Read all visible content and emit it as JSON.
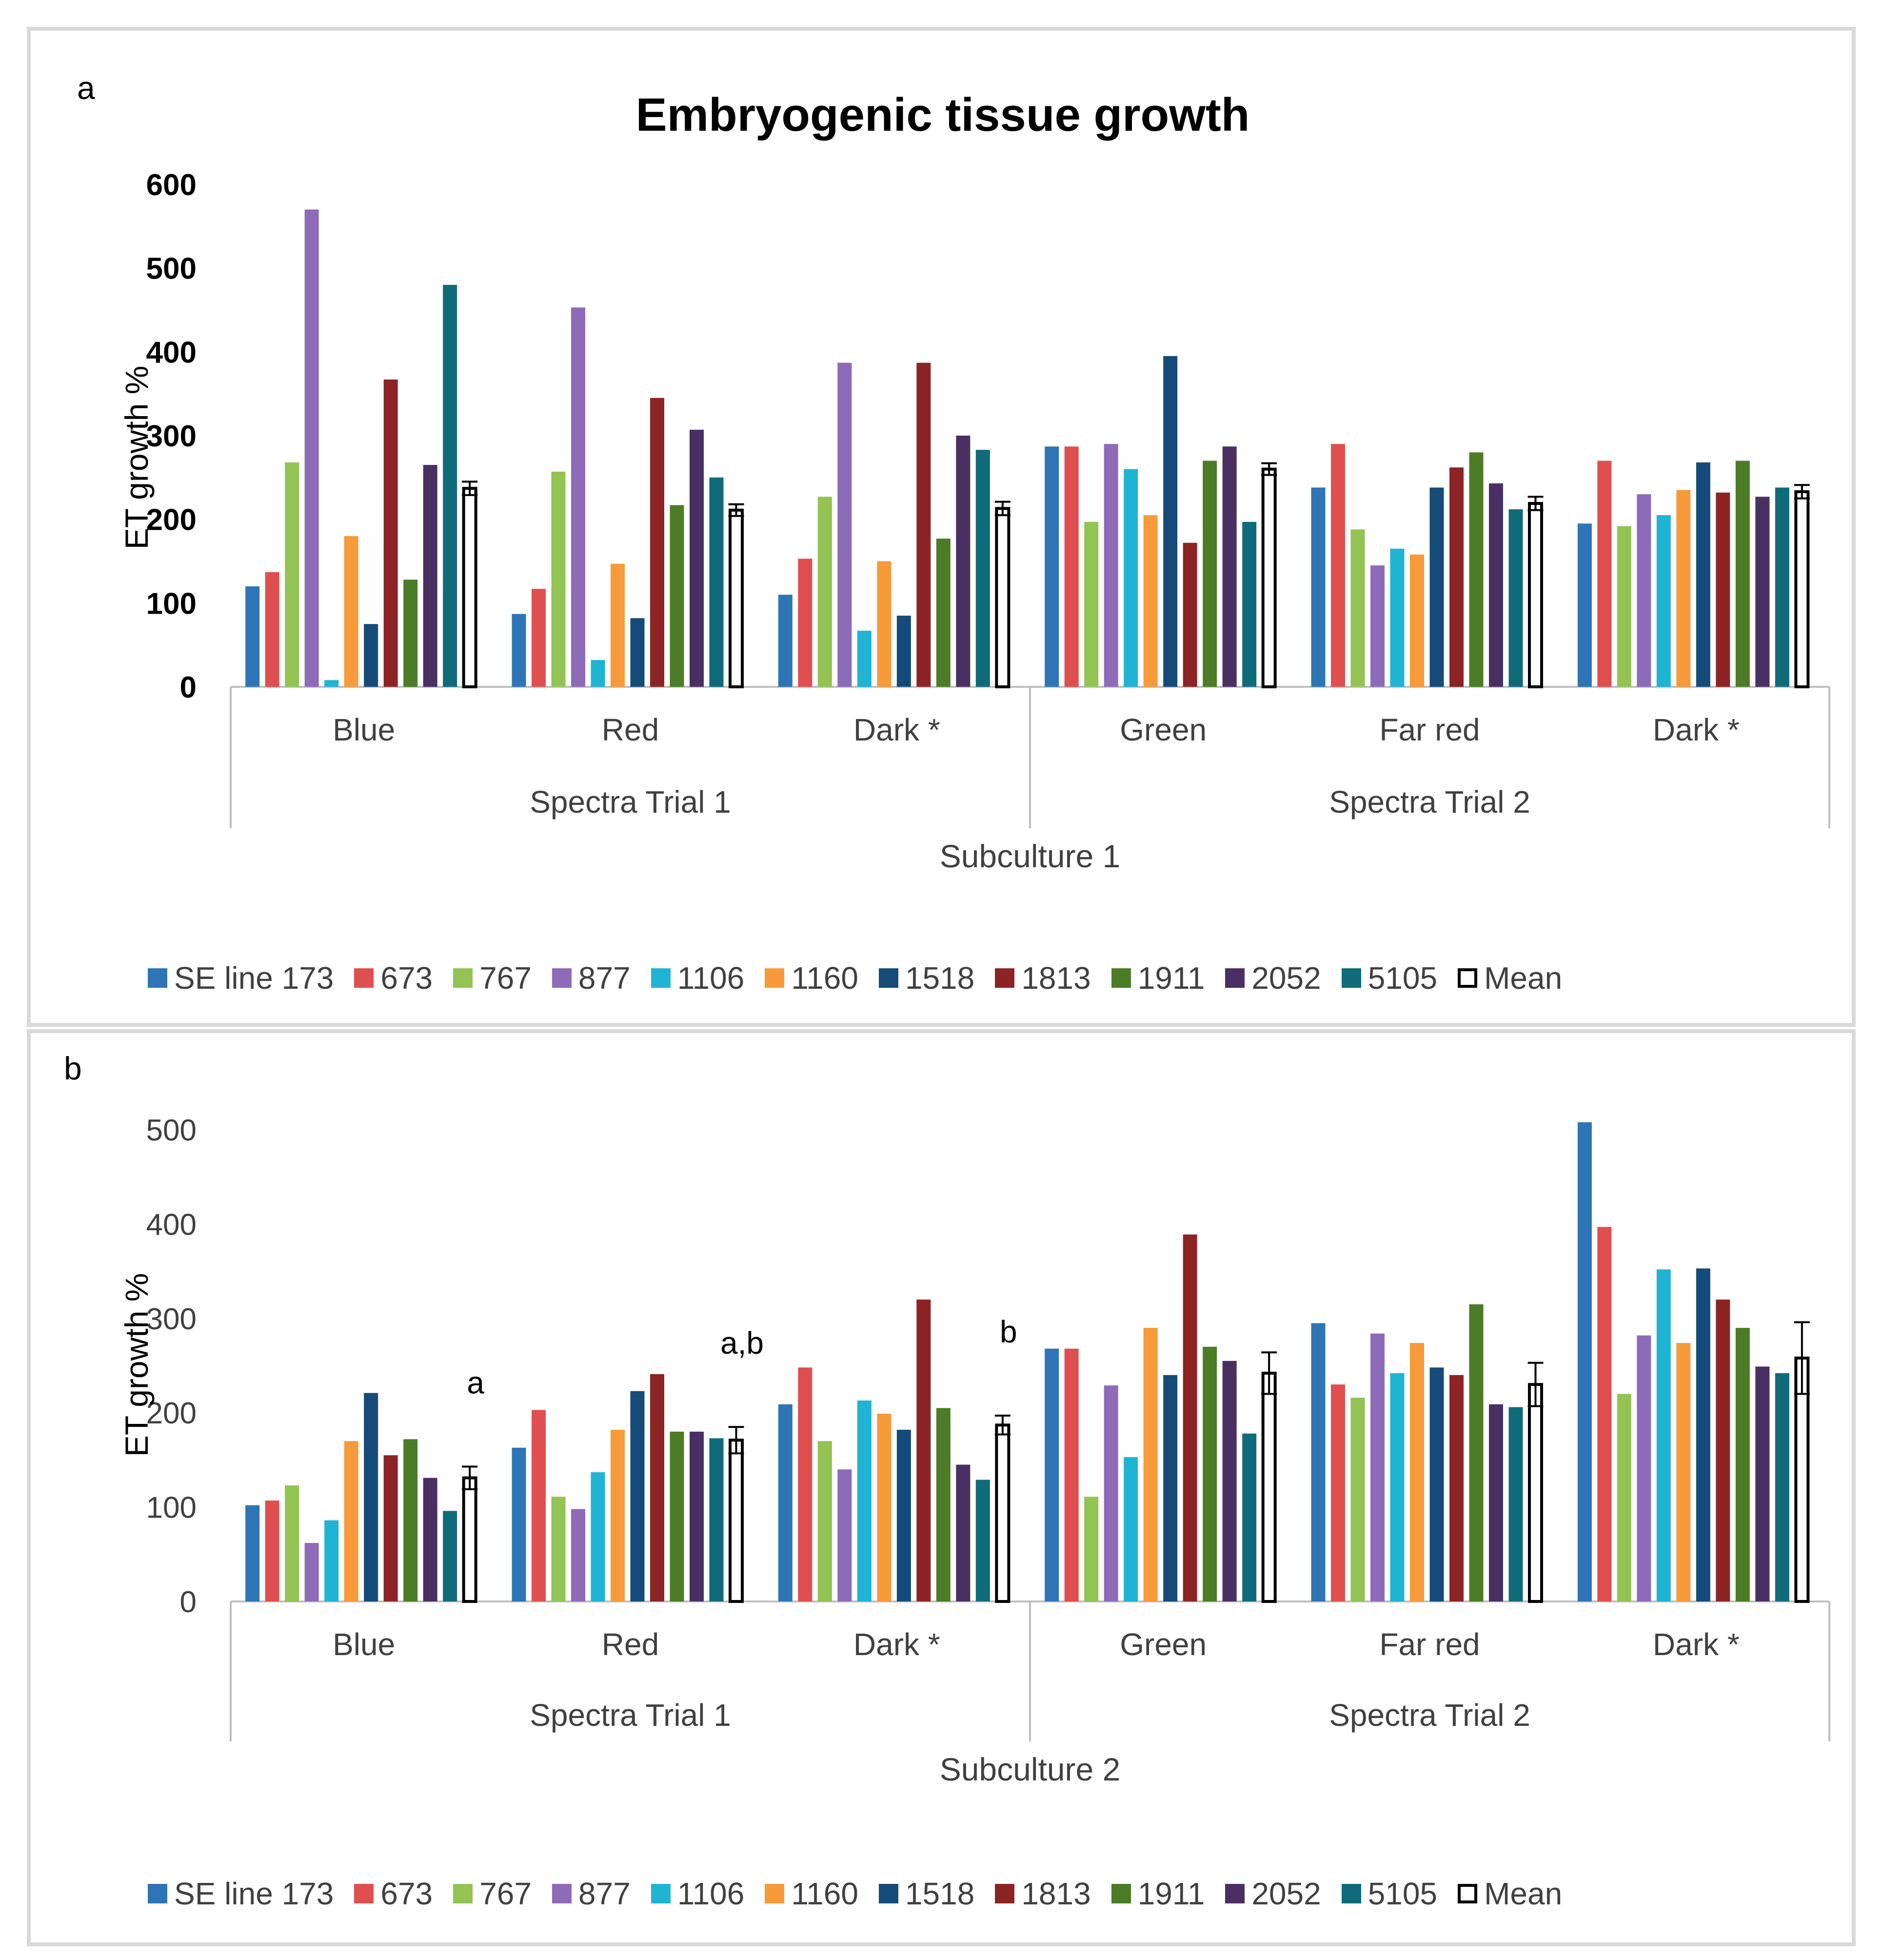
{
  "figure": {
    "title": "Embryogenic tissue growth"
  },
  "colors": {
    "series": [
      "#2e75b6",
      "#e04f4f",
      "#92c353",
      "#8e6bb8",
      "#1fb4d4",
      "#f79a3a",
      "#154b79",
      "#8c2425",
      "#4c7c26",
      "#4a2f63",
      "#0f6b7a"
    ],
    "mean_fill": "#ffffff",
    "mean_edge": "#000000",
    "axis": "#bfbfbf",
    "text": "#404040"
  },
  "legend": {
    "items": [
      {
        "label": "SE line 173",
        "icon": "square-swatch"
      },
      {
        "label": "673",
        "icon": "square-swatch"
      },
      {
        "label": "767",
        "icon": "square-swatch"
      },
      {
        "label": "877",
        "icon": "square-swatch"
      },
      {
        "label": "1106",
        "icon": "square-swatch"
      },
      {
        "label": "1160",
        "icon": "square-swatch"
      },
      {
        "label": "1518",
        "icon": "square-swatch"
      },
      {
        "label": "1813",
        "icon": "square-swatch"
      },
      {
        "label": "1911",
        "icon": "square-swatch"
      },
      {
        "label": "2052",
        "icon": "square-swatch"
      },
      {
        "label": "5105",
        "icon": "square-swatch"
      },
      {
        "label": "Mean",
        "icon": "outlined-square-swatch"
      }
    ]
  },
  "chart_data": [
    {
      "type": "bar",
      "panel_label": "a",
      "title": "Embryogenic tissue growth",
      "ylabel": "ET growth %",
      "xlabel": "Subculture 1",
      "ylim": [
        0,
        600
      ],
      "yticks": [
        "0",
        "100",
        "200",
        "300",
        "400",
        "500",
        "600"
      ],
      "categories": [
        "Blue",
        "Red",
        "Dark *",
        "Green",
        "Far red",
        "Dark *"
      ],
      "groups": [
        {
          "label": "Spectra Trial 1",
          "span": [
            0,
            2
          ]
        },
        {
          "label": "Spectra Trial 2",
          "span": [
            3,
            5
          ]
        }
      ],
      "series": [
        {
          "name": "SE line 173",
          "values": [
            120,
            87,
            110,
            287,
            238,
            195
          ]
        },
        {
          "name": "673",
          "values": [
            137,
            117,
            153,
            287,
            290,
            270
          ]
        },
        {
          "name": "767",
          "values": [
            268,
            257,
            227,
            197,
            188,
            192
          ]
        },
        {
          "name": "877",
          "values": [
            570,
            453,
            387,
            290,
            145,
            230
          ]
        },
        {
          "name": "1106",
          "values": [
            8,
            32,
            67,
            260,
            165,
            205
          ]
        },
        {
          "name": "1160",
          "values": [
            180,
            147,
            150,
            205,
            158,
            235
          ]
        },
        {
          "name": "1518",
          "values": [
            75,
            82,
            85,
            395,
            238,
            268
          ]
        },
        {
          "name": "1813",
          "values": [
            367,
            345,
            387,
            172,
            262,
            232
          ]
        },
        {
          "name": "1911",
          "values": [
            128,
            217,
            177,
            270,
            280,
            270
          ]
        },
        {
          "name": "2052",
          "values": [
            265,
            307,
            300,
            287,
            243,
            227
          ]
        },
        {
          "name": "5105",
          "values": [
            480,
            250,
            283,
            197,
            212,
            238
          ]
        }
      ],
      "mean": {
        "name": "Mean",
        "values": [
          237,
          211,
          213,
          260,
          219,
          233
        ],
        "error": [
          8,
          7,
          8,
          7,
          8,
          8
        ]
      },
      "annotations": []
    },
    {
      "type": "bar",
      "panel_label": "b",
      "title": "",
      "ylabel": "ET growth %",
      "xlabel": "Subculture 2",
      "ylim": [
        0,
        500
      ],
      "yticks": [
        "0",
        "100",
        "200",
        "300",
        "400",
        "500"
      ],
      "categories": [
        "Blue",
        "Red",
        "Dark *",
        "Green",
        "Far red",
        "Dark *"
      ],
      "groups": [
        {
          "label": "Spectra Trial 1",
          "span": [
            0,
            2
          ]
        },
        {
          "label": "Spectra Trial 2",
          "span": [
            3,
            5
          ]
        }
      ],
      "series": [
        {
          "name": "SE line 173",
          "values": [
            102,
            163,
            209,
            268,
            295,
            508
          ]
        },
        {
          "name": "673",
          "values": [
            107,
            203,
            248,
            268,
            230,
            397
          ]
        },
        {
          "name": "767",
          "values": [
            123,
            111,
            170,
            111,
            216,
            220
          ]
        },
        {
          "name": "877",
          "values": [
            62,
            98,
            140,
            229,
            284,
            282
          ]
        },
        {
          "name": "1106",
          "values": [
            86,
            137,
            213,
            153,
            242,
            352
          ]
        },
        {
          "name": "1160",
          "values": [
            170,
            182,
            199,
            290,
            274,
            274
          ]
        },
        {
          "name": "1518",
          "values": [
            221,
            223,
            182,
            240,
            248,
            353
          ]
        },
        {
          "name": "1813",
          "values": [
            155,
            241,
            320,
            389,
            240,
            320
          ]
        },
        {
          "name": "1911",
          "values": [
            172,
            180,
            205,
            270,
            315,
            290
          ]
        },
        {
          "name": "2052",
          "values": [
            131,
            180,
            145,
            255,
            209,
            249
          ]
        },
        {
          "name": "5105",
          "values": [
            96,
            173,
            129,
            178,
            206,
            242
          ]
        }
      ],
      "mean": {
        "name": "Mean",
        "values": [
          131,
          171,
          187,
          242,
          230,
          258
        ],
        "error": [
          12,
          14,
          10,
          22,
          23,
          38
        ]
      },
      "annotations": [
        {
          "category_index": 0,
          "text": "a"
        },
        {
          "category_index": 1,
          "text": "a,b"
        },
        {
          "category_index": 2,
          "text": "b"
        }
      ]
    }
  ]
}
